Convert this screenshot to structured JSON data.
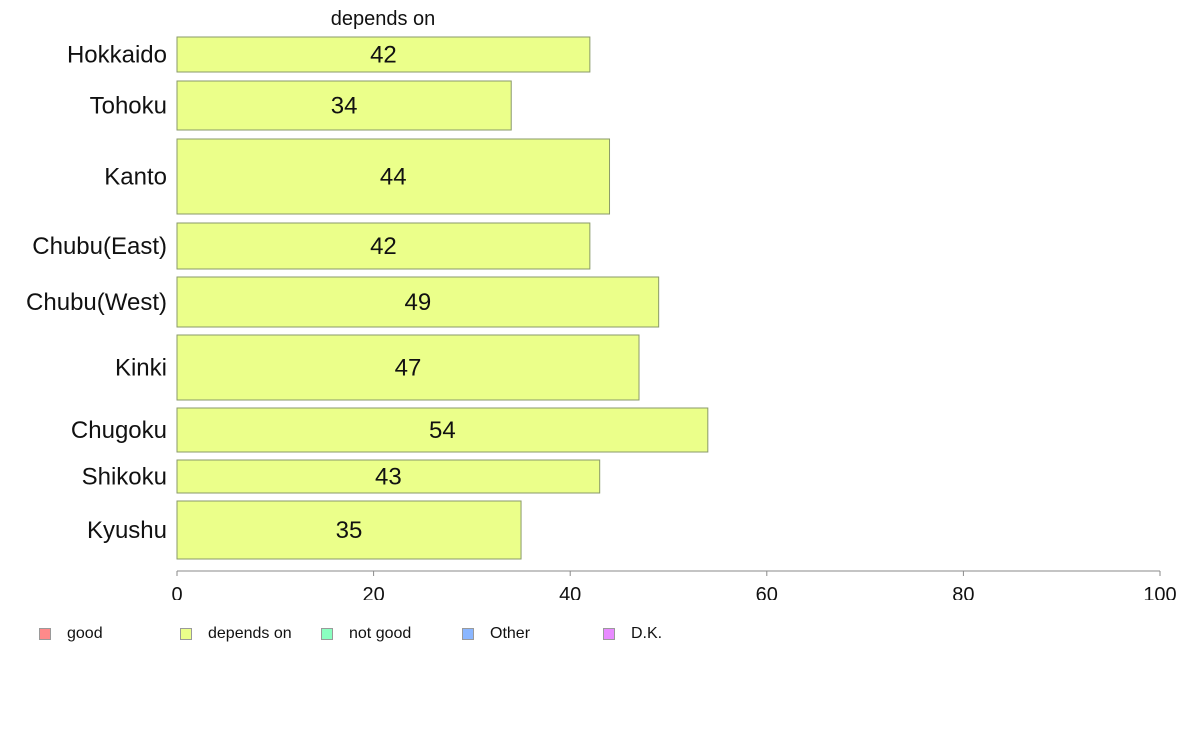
{
  "chart_data": {
    "type": "bar",
    "orientation": "horizontal",
    "title": "depends on",
    "categories": [
      "Hokkaido",
      "Tohoku",
      "Kanto",
      "Chubu(East)",
      "Chubu(West)",
      "Kinki",
      "Chugoku",
      "Shikoku",
      "Kyushu"
    ],
    "series": [
      {
        "name": "depends on",
        "values": [
          42,
          34,
          44,
          42,
          49,
          47,
          54,
          43,
          35
        ]
      }
    ],
    "data_labels": [
      "42",
      "34",
      "44",
      "42",
      "49",
      "47",
      "54",
      "43",
      "35"
    ],
    "xlim": [
      0,
      100
    ],
    "xticks": [
      0,
      20,
      40,
      60,
      80,
      100
    ],
    "xtick_labels": [
      "0",
      "20",
      "40",
      "60",
      "80",
      "100"
    ],
    "xlabel": "",
    "ylabel": "",
    "grid": false,
    "legend_position": "bottom",
    "bar_color": "#ebff8a",
    "bar_border_color": "#8a9a6a",
    "legend": [
      {
        "label": "good",
        "color": "#ff8a8a"
      },
      {
        "label": "depends on",
        "color": "#ebff8a"
      },
      {
        "label": "not good",
        "color": "#8affc0"
      },
      {
        "label": "Other",
        "color": "#8ab6ff"
      },
      {
        "label": "D.K.",
        "color": "#e88aff"
      }
    ]
  }
}
